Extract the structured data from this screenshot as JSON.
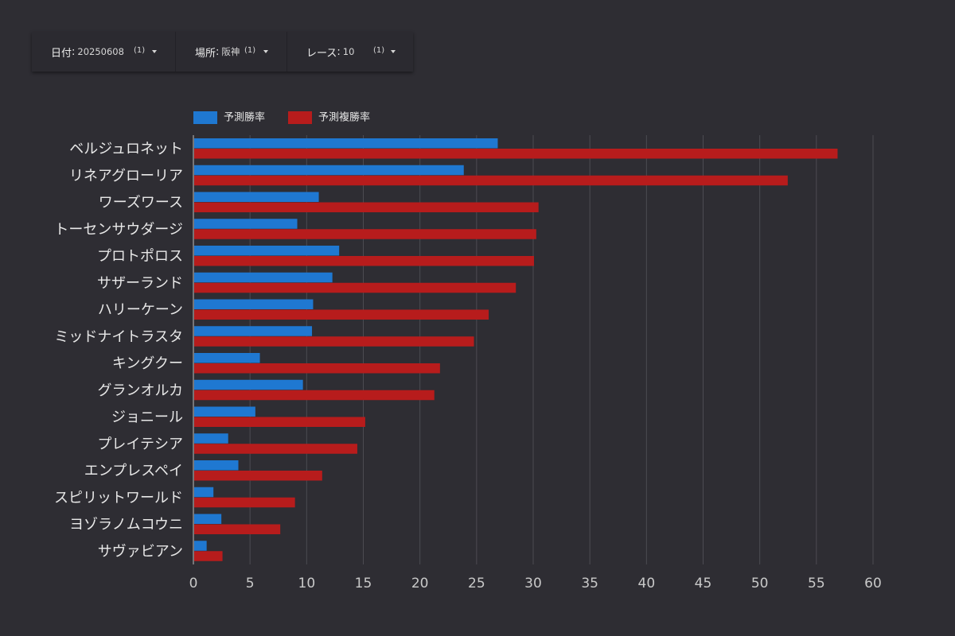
{
  "filters": [
    {
      "label": "日付",
      "value": "20250608",
      "count": "(1)"
    },
    {
      "label": "場所",
      "value": "阪神",
      "count": "(1)"
    },
    {
      "label": "レース",
      "value": "10",
      "count": "(1)"
    }
  ],
  "chart_data": {
    "type": "bar",
    "orientation": "horizontal",
    "categories": [
      "ベルジュロネット",
      "リネアグローリア",
      "ワーズワース",
      "トーセンサウダージ",
      "プロトポロス",
      "サザーランド",
      "ハリーケーン",
      "ミッドナイトラスタ",
      "キングクー",
      "グランオルカ",
      "ジョニール",
      "プレイテシア",
      "エンプレスペイ",
      "スピリットワールド",
      "ヨゾラノムコウニ",
      "サヴァビアン"
    ],
    "series": [
      {
        "name": "予測勝率",
        "color": "#1f78d1",
        "values": [
          26.8,
          23.8,
          11.0,
          9.1,
          12.8,
          12.2,
          10.5,
          10.4,
          5.8,
          9.6,
          5.4,
          3.0,
          3.9,
          1.7,
          2.4,
          1.1
        ]
      },
      {
        "name": "予測複勝率",
        "color": "#b71c1c",
        "values": [
          56.8,
          52.4,
          30.4,
          30.2,
          30.0,
          28.4,
          26.0,
          24.7,
          21.7,
          21.2,
          15.1,
          14.4,
          11.3,
          8.9,
          7.6,
          2.5
        ]
      }
    ],
    "xlim": [
      0,
      60
    ],
    "xticks": [
      0,
      5,
      10,
      15,
      20,
      25,
      30,
      35,
      40,
      45,
      50,
      55,
      60
    ],
    "grid": true,
    "legend_position": "top-left"
  }
}
